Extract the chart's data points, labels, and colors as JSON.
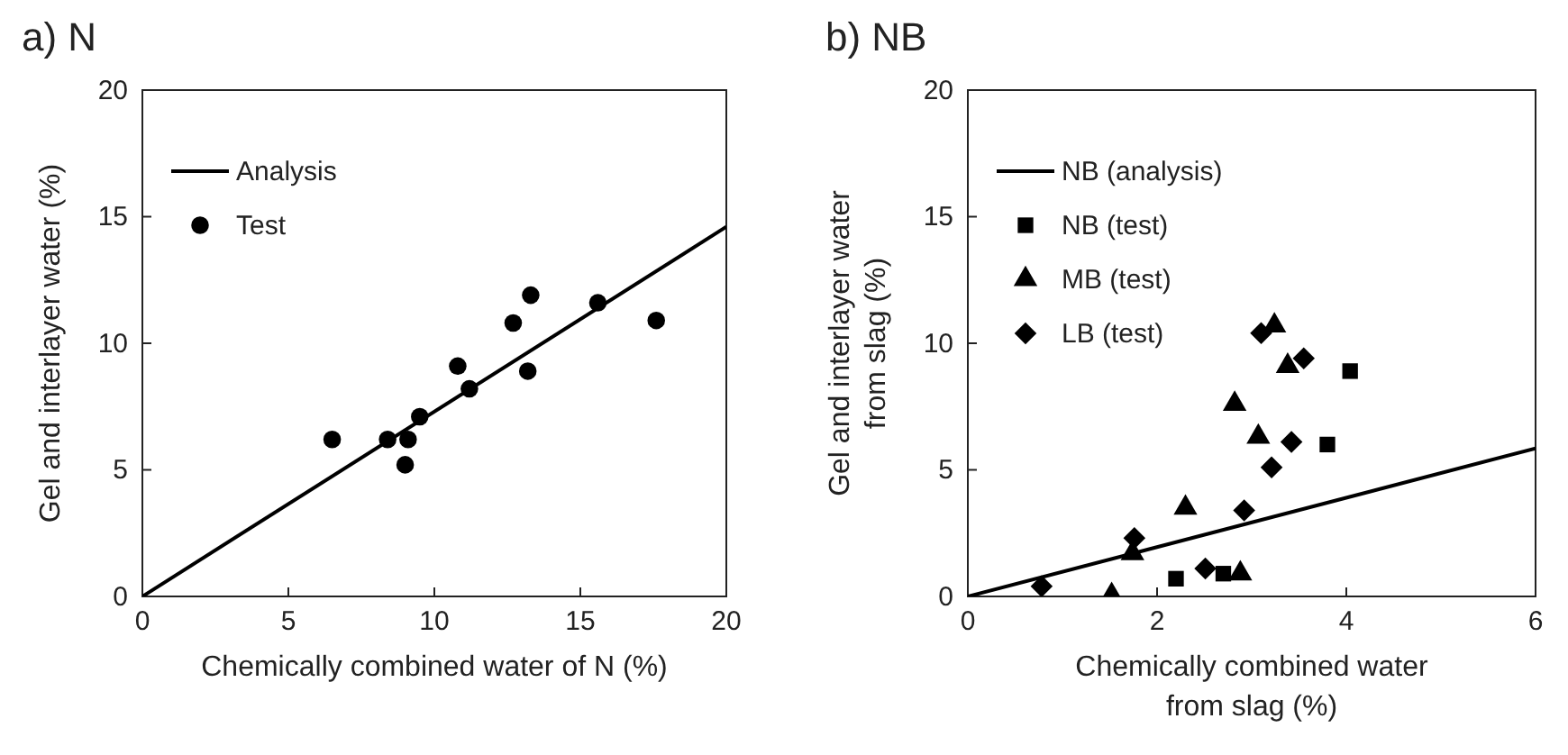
{
  "chart_data": [
    {
      "type": "scatter",
      "title": "a) N",
      "xlabel": "Chemically combined water of N (%)",
      "ylabel": "Gel and interlayer water (%)",
      "xlim": [
        0,
        20
      ],
      "ylim": [
        0,
        20
      ],
      "xticks": [
        0,
        5,
        10,
        15,
        20
      ],
      "yticks": [
        0,
        5,
        10,
        15,
        20
      ],
      "grid": false,
      "legend": "top left",
      "series": [
        {
          "name": "Analysis",
          "type": "line",
          "color": "#000000",
          "marker": "none",
          "line_style": "solid",
          "x": [
            0,
            20
          ],
          "values": [
            0,
            14.6
          ]
        },
        {
          "name": "Test",
          "color": "#000000",
          "marker": "circle",
          "x": [
            6.5,
            8.4,
            9.0,
            9.1,
            9.5,
            10.8,
            11.2,
            12.7,
            13.3,
            13.2,
            15.6,
            17.6
          ],
          "values": [
            6.2,
            6.2,
            5.2,
            6.2,
            7.1,
            9.1,
            8.2,
            10.8,
            11.9,
            8.9,
            11.6,
            10.9
          ]
        }
      ]
    },
    {
      "type": "scatter",
      "title": "b) NB",
      "xlabel": "Chemically combined water\nfrom slag (%)",
      "ylabel": "Gel and interlayer water\nfrom slag (%)",
      "xlim": [
        0,
        6
      ],
      "ylim": [
        0,
        20
      ],
      "xticks": [
        0,
        2,
        4,
        6
      ],
      "yticks": [
        0,
        5,
        10,
        15,
        20
      ],
      "grid": false,
      "legend": "top left",
      "series": [
        {
          "name": "NB (analysis)",
          "type": "line",
          "color": "#000000",
          "marker": "none",
          "line_style": "solid",
          "x": [
            0,
            6
          ],
          "values": [
            0,
            5.85
          ]
        },
        {
          "name": "NB (test)",
          "color": "#000000",
          "marker": "square",
          "x": [
            2.2,
            2.7,
            3.8,
            4.04
          ],
          "values": [
            0.7,
            0.9,
            6.0,
            8.9
          ]
        },
        {
          "name": "MB (test)",
          "color": "#000000",
          "marker": "triangle",
          "x": [
            1.52,
            1.74,
            2.3,
            2.88,
            2.82,
            3.07,
            3.24,
            3.38
          ],
          "values": [
            0.05,
            1.7,
            3.5,
            0.9,
            7.6,
            6.3,
            10.7,
            9.1
          ]
        },
        {
          "name": "LB (test)",
          "color": "#000000",
          "marker": "diamond",
          "x": [
            0.78,
            1.76,
            2.51,
            2.92,
            3.1,
            3.21,
            3.42,
            3.55
          ],
          "values": [
            0.4,
            2.3,
            1.1,
            3.4,
            10.4,
            5.1,
            6.1,
            9.4
          ]
        }
      ]
    }
  ]
}
